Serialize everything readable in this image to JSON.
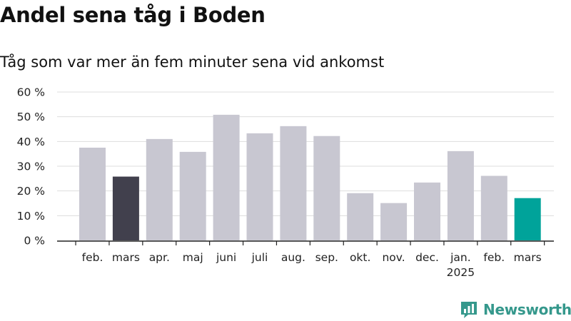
{
  "title": "Andel sena tåg i Boden",
  "subtitle": "Tåg som var mer än fem minuter sena vid ankomst",
  "brand": {
    "name": "Newsworthy",
    "icon": "bar-chart-logo-icon"
  },
  "colors": {
    "default": "#c8c7d1",
    "highlight_previous": "#41404d",
    "highlight_current": "#00a39a",
    "brand": "#35988c"
  },
  "chart_data": {
    "type": "bar",
    "title": "Andel sena tåg i Boden",
    "subtitle": "Tåg som var mer än fem minuter sena vid ankomst",
    "xlabel": "",
    "ylabel": "",
    "ylim": [
      0,
      60
    ],
    "yticks": [
      0,
      10,
      20,
      30,
      40,
      50,
      60
    ],
    "ytick_labels": [
      "0 %",
      "10 %",
      "20 %",
      "30 %",
      "40 %",
      "50 %",
      "60 %"
    ],
    "grid": true,
    "categories": [
      "feb.",
      "mars",
      "apr.",
      "maj",
      "juni",
      "juli",
      "aug.",
      "sep.",
      "okt.",
      "nov.",
      "dec.",
      "jan.",
      "feb.",
      "mars"
    ],
    "year_label": {
      "index": 11,
      "text": "2025"
    },
    "values": [
      37.5,
      25.8,
      41,
      35.8,
      50.8,
      43.3,
      46.2,
      42.2,
      19.1,
      15.1,
      23.4,
      36.1,
      26.1,
      17.1
    ],
    "bar_colors": [
      "#c8c7d1",
      "#41404d",
      "#c8c7d1",
      "#c8c7d1",
      "#c8c7d1",
      "#c8c7d1",
      "#c8c7d1",
      "#c8c7d1",
      "#c8c7d1",
      "#c8c7d1",
      "#c8c7d1",
      "#c8c7d1",
      "#c8c7d1",
      "#00a39a"
    ]
  }
}
